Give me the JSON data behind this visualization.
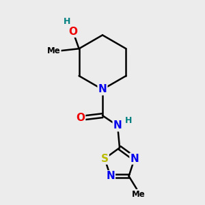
{
  "bg_color": "#ececec",
  "atom_colors": {
    "C": "#000000",
    "N": "#0000ee",
    "O": "#ee0000",
    "S": "#bbbb00",
    "H": "#008080"
  },
  "bond_color": "#000000",
  "bond_width": 1.8,
  "figsize": [
    3.0,
    3.0
  ],
  "dpi": 100,
  "xlim": [
    0,
    10
  ],
  "ylim": [
    0,
    10
  ]
}
